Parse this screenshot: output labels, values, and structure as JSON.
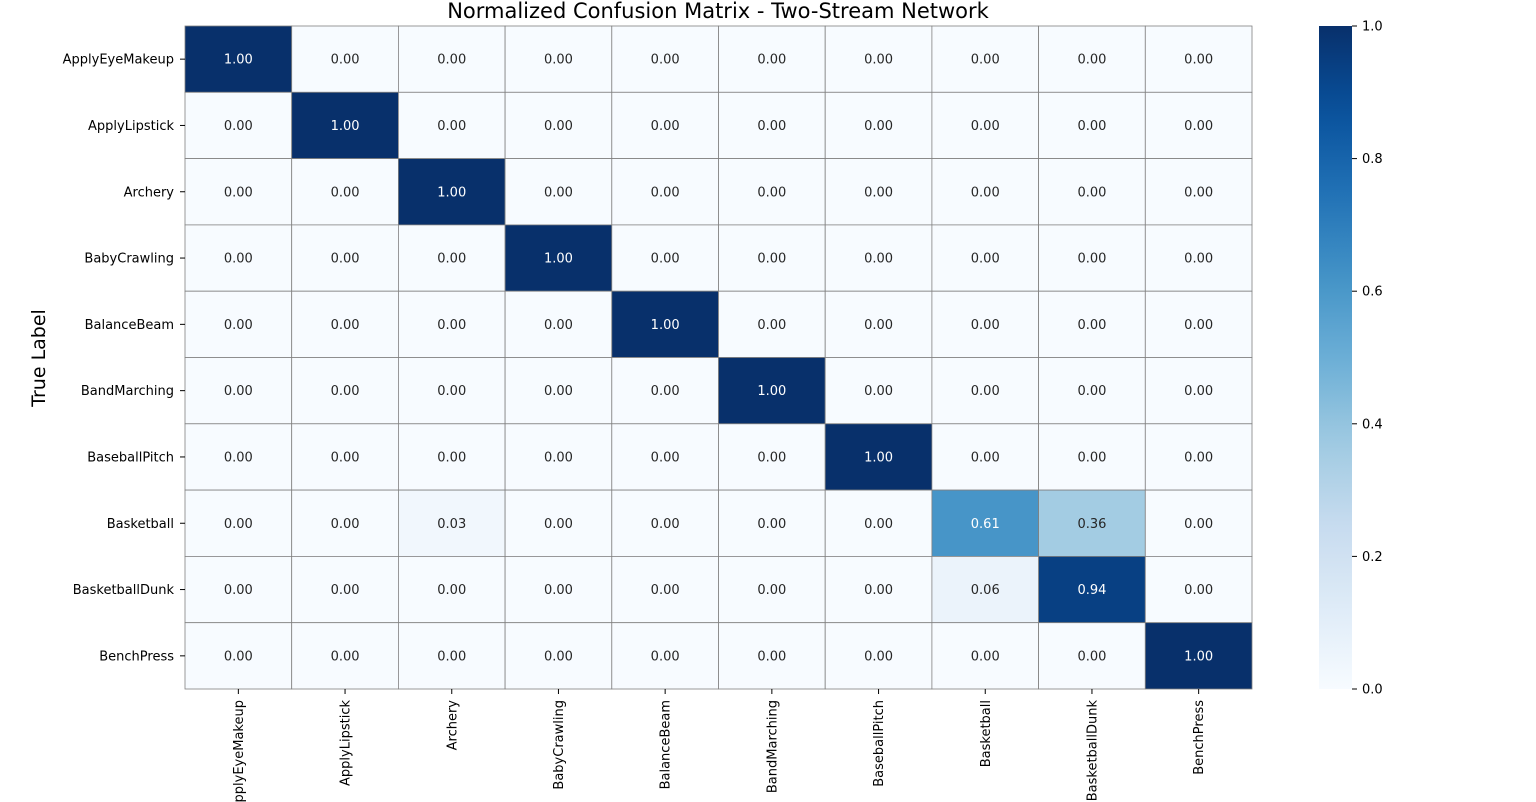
{
  "chart_data": {
    "type": "heatmap",
    "title": "Normalized Confusion Matrix - Two-Stream Network",
    "xlabel": "",
    "ylabel": "True Label",
    "row_labels": [
      "ApplyEyeMakeup",
      "ApplyLipstick",
      "Archery",
      "BabyCrawling",
      "BalanceBeam",
      "BandMarching",
      "BaseballPitch",
      "Basketball",
      "BasketballDunk",
      "BenchPress"
    ],
    "col_labels": [
      "ApplyEyeMakeup",
      "ApplyLipstick",
      "Archery",
      "BabyCrawling",
      "BalanceBeam",
      "BandMarching",
      "BaseballPitch",
      "Basketball",
      "BasketballDunk",
      "BenchPress"
    ],
    "values": [
      [
        1.0,
        0.0,
        0.0,
        0.0,
        0.0,
        0.0,
        0.0,
        0.0,
        0.0,
        0.0
      ],
      [
        0.0,
        1.0,
        0.0,
        0.0,
        0.0,
        0.0,
        0.0,
        0.0,
        0.0,
        0.0
      ],
      [
        0.0,
        0.0,
        1.0,
        0.0,
        0.0,
        0.0,
        0.0,
        0.0,
        0.0,
        0.0
      ],
      [
        0.0,
        0.0,
        0.0,
        1.0,
        0.0,
        0.0,
        0.0,
        0.0,
        0.0,
        0.0
      ],
      [
        0.0,
        0.0,
        0.0,
        0.0,
        1.0,
        0.0,
        0.0,
        0.0,
        0.0,
        0.0
      ],
      [
        0.0,
        0.0,
        0.0,
        0.0,
        0.0,
        1.0,
        0.0,
        0.0,
        0.0,
        0.0
      ],
      [
        0.0,
        0.0,
        0.0,
        0.0,
        0.0,
        0.0,
        1.0,
        0.0,
        0.0,
        0.0
      ],
      [
        0.0,
        0.0,
        0.03,
        0.0,
        0.0,
        0.0,
        0.0,
        0.61,
        0.36,
        0.0
      ],
      [
        0.0,
        0.0,
        0.0,
        0.0,
        0.0,
        0.0,
        0.0,
        0.06,
        0.94,
        0.0
      ],
      [
        0.0,
        0.0,
        0.0,
        0.0,
        0.0,
        0.0,
        0.0,
        0.0,
        0.0,
        1.0
      ]
    ],
    "value_format": "0.00",
    "colormap": "Blues",
    "colorbar": {
      "range": [
        0.0,
        1.0
      ],
      "ticks": [
        "0.0",
        "0.2",
        "0.4",
        "0.6",
        "0.8",
        "1.0"
      ]
    },
    "cell_border_color": "#808080",
    "colors": {
      "low": "#f7fbff",
      "high": "#08306b",
      "text_dark": "#262626",
      "text_light": "#ffffff"
    }
  }
}
